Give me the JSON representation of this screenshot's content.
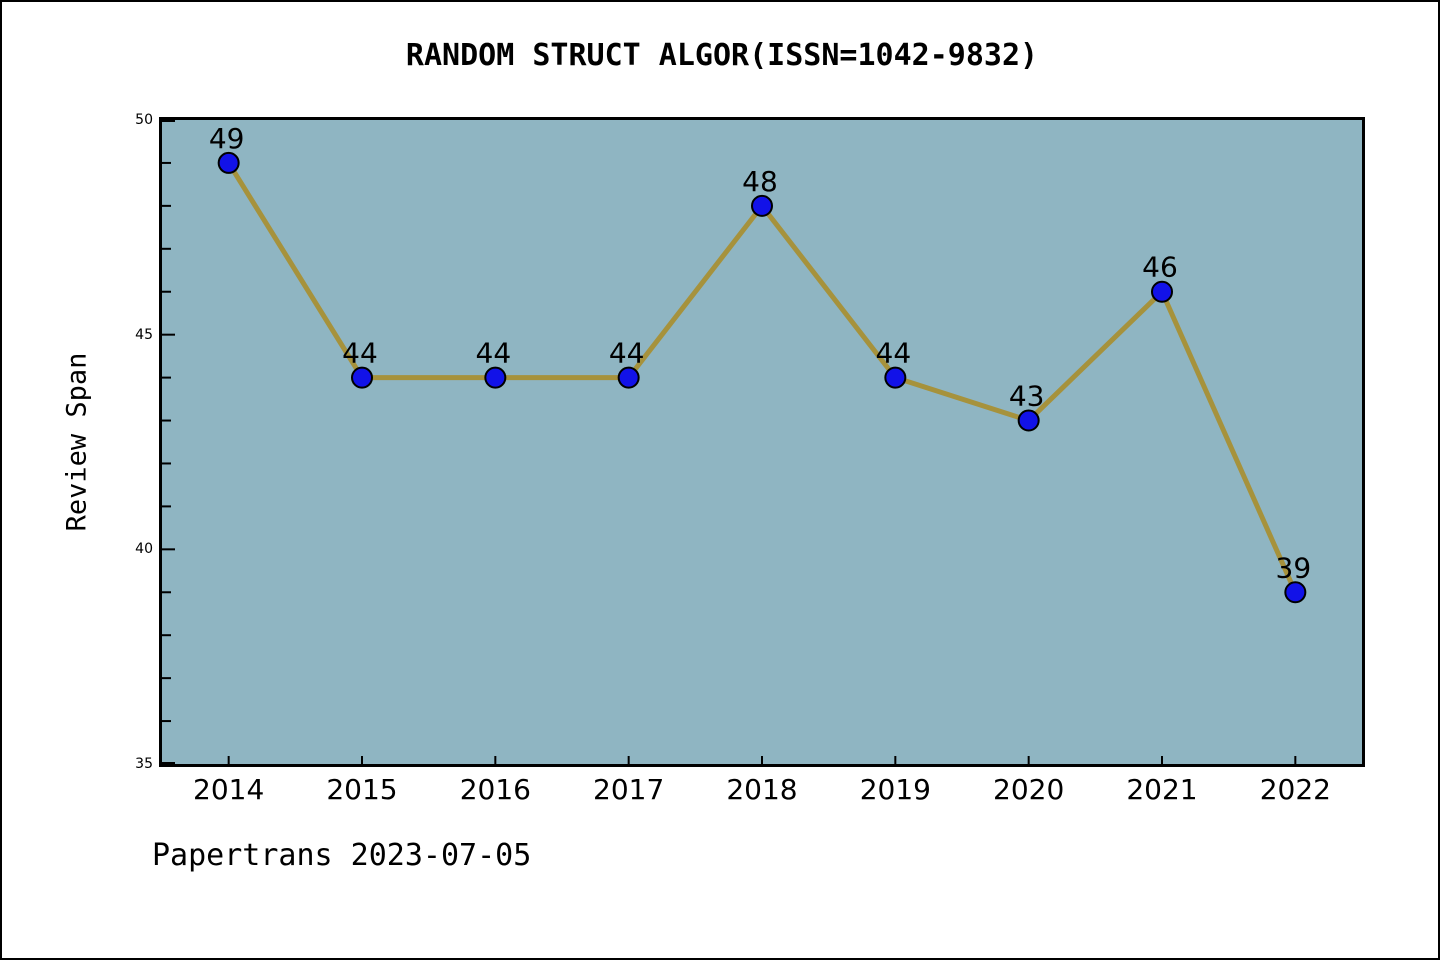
{
  "header": {
    "title": "RANDOM STRUCT ALGOR(ISSN=1042-9832)"
  },
  "footer": {
    "text": "Papertrans 2023-07-05"
  },
  "chart_data": {
    "type": "line",
    "title": "RANDOM STRUCT ALGOR(ISSN=1042-9832)",
    "xlabel": "",
    "ylabel": "Review Span",
    "categories": [
      "2014",
      "2015",
      "2016",
      "2017",
      "2018",
      "2019",
      "2020",
      "2021",
      "2022"
    ],
    "series": [
      {
        "name": "Review Span",
        "values": [
          49,
          44,
          44,
          44,
          48,
          44,
          43,
          46,
          39
        ]
      }
    ],
    "point_labels": [
      "49",
      "44",
      "44",
      "44",
      "48",
      "44",
      "43",
      "46",
      "39"
    ],
    "ylim": [
      35,
      50
    ],
    "y_major_ticks": [
      35,
      40,
      45,
      50
    ],
    "y_minor_step": 1,
    "grid": false,
    "legend_position": "none",
    "colors": {
      "plot_background": "#8FB5C2",
      "line": "#A6923C",
      "marker_fill": "#1212E8",
      "marker_edge": "#000000",
      "axis": "#000000",
      "text": "#000000"
    }
  }
}
